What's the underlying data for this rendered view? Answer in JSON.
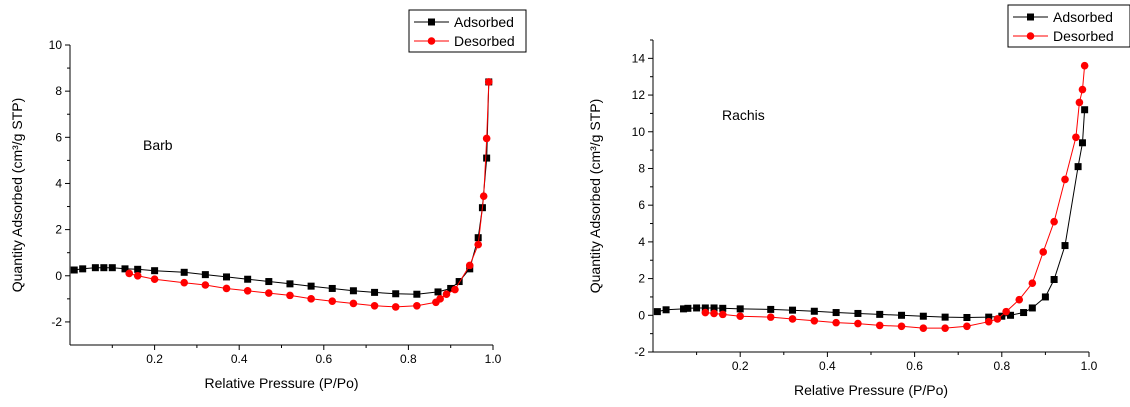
{
  "chart_data": [
    {
      "type": "line",
      "annotation": "Barb",
      "xlabel": "Relative Pressure (P/Po)",
      "ylabel": "Quantity Adsorbed (cm³/g STP)",
      "xlim": [
        0,
        1.0
      ],
      "ylim": [
        -3,
        10
      ],
      "xticks": [
        "0.2",
        "0.4",
        "0.6",
        "0.8",
        "1.0"
      ],
      "yticks": [
        "-2",
        "0",
        "2",
        "4",
        "6",
        "8",
        "10"
      ],
      "grid": false,
      "legend_position": "top-right",
      "series": [
        {
          "name": "Adsorbed",
          "color": "#000000",
          "marker": "square",
          "x": [
            0.01,
            0.03,
            0.06,
            0.08,
            0.1,
            0.13,
            0.16,
            0.2,
            0.27,
            0.32,
            0.37,
            0.42,
            0.47,
            0.52,
            0.57,
            0.62,
            0.67,
            0.72,
            0.77,
            0.82,
            0.87,
            0.9,
            0.92,
            0.945,
            0.965,
            0.975,
            0.985,
            0.99
          ],
          "y": [
            0.25,
            0.3,
            0.35,
            0.35,
            0.35,
            0.3,
            0.28,
            0.22,
            0.15,
            0.05,
            -0.05,
            -0.15,
            -0.25,
            -0.35,
            -0.45,
            -0.55,
            -0.65,
            -0.72,
            -0.78,
            -0.8,
            -0.7,
            -0.55,
            -0.25,
            0.3,
            1.65,
            2.95,
            5.1,
            8.4
          ]
        },
        {
          "name": "Desorbed",
          "color": "#ff0000",
          "marker": "circle",
          "x": [
            0.14,
            0.16,
            0.2,
            0.27,
            0.32,
            0.37,
            0.42,
            0.47,
            0.52,
            0.57,
            0.62,
            0.67,
            0.72,
            0.77,
            0.82,
            0.865,
            0.875,
            0.89,
            0.91,
            0.945,
            0.965,
            0.978,
            0.985,
            0.99
          ],
          "y": [
            0.1,
            0.0,
            -0.15,
            -0.3,
            -0.4,
            -0.55,
            -0.65,
            -0.75,
            -0.85,
            -1.0,
            -1.1,
            -1.2,
            -1.3,
            -1.35,
            -1.3,
            -1.15,
            -1.0,
            -0.8,
            -0.6,
            0.45,
            1.35,
            3.45,
            5.95,
            8.4
          ]
        }
      ]
    },
    {
      "type": "line",
      "annotation": "Rachis",
      "xlabel": "Relative Pressure (P/Po)",
      "ylabel": "Quantity Adsorbed (cm³/g STP)",
      "xlim": [
        0,
        1.0
      ],
      "ylim": [
        -2,
        15
      ],
      "xticks": [
        "0.2",
        "0.4",
        "0.6",
        "0.8",
        "1.0"
      ],
      "yticks": [
        "-2",
        "0",
        "2",
        "4",
        "6",
        "8",
        "10",
        "12",
        "14"
      ],
      "grid": false,
      "legend_position": "top-right",
      "series": [
        {
          "name": "Adsorbed",
          "color": "#000000",
          "marker": "square",
          "x": [
            0.01,
            0.03,
            0.07,
            0.08,
            0.1,
            0.12,
            0.14,
            0.16,
            0.2,
            0.27,
            0.32,
            0.37,
            0.42,
            0.47,
            0.52,
            0.57,
            0.62,
            0.67,
            0.72,
            0.77,
            0.8,
            0.82,
            0.85,
            0.87,
            0.9,
            0.92,
            0.945,
            0.975,
            0.985,
            0.99
          ],
          "y": [
            0.2,
            0.3,
            0.35,
            0.38,
            0.4,
            0.4,
            0.4,
            0.38,
            0.35,
            0.32,
            0.28,
            0.22,
            0.15,
            0.1,
            0.05,
            0.0,
            -0.05,
            -0.1,
            -0.12,
            -0.1,
            -0.05,
            0.0,
            0.15,
            0.4,
            1.0,
            1.95,
            3.8,
            8.1,
            9.4,
            11.2
          ]
        },
        {
          "name": "Desorbed",
          "color": "#ff0000",
          "marker": "circle",
          "x": [
            0.12,
            0.14,
            0.16,
            0.2,
            0.27,
            0.32,
            0.37,
            0.42,
            0.47,
            0.52,
            0.57,
            0.62,
            0.67,
            0.72,
            0.77,
            0.79,
            0.81,
            0.84,
            0.87,
            0.895,
            0.92,
            0.945,
            0.97,
            0.978,
            0.985,
            0.99
          ],
          "y": [
            0.15,
            0.1,
            0.05,
            -0.05,
            -0.1,
            -0.2,
            -0.3,
            -0.4,
            -0.45,
            -0.55,
            -0.6,
            -0.7,
            -0.7,
            -0.6,
            -0.35,
            -0.2,
            0.2,
            0.85,
            1.75,
            3.45,
            5.1,
            7.4,
            9.7,
            11.6,
            12.3,
            13.6
          ]
        }
      ]
    }
  ]
}
